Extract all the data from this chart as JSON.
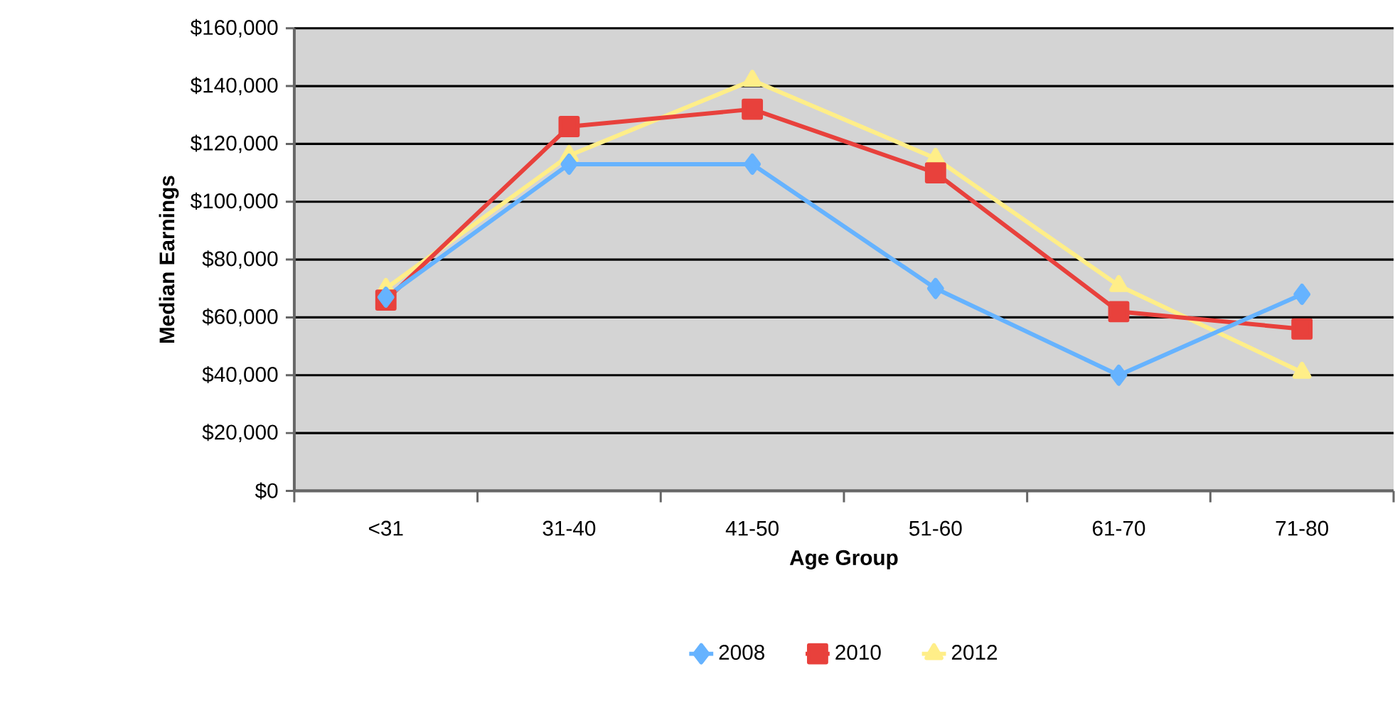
{
  "chart_data": {
    "type": "line",
    "xlabel": "Age Group",
    "ylabel": "Median Earnings",
    "categories": [
      "<31",
      "31-40",
      "41-50",
      "51-60",
      "61-70",
      "71-80"
    ],
    "series": [
      {
        "name": "2008",
        "color": "#66b3ff",
        "marker": "diamond",
        "values": [
          67000,
          113000,
          113000,
          70000,
          40000,
          68000
        ]
      },
      {
        "name": "2010",
        "color": "#e8413c",
        "marker": "square",
        "values": [
          66000,
          126000,
          132000,
          110000,
          62000,
          56000
        ]
      },
      {
        "name": "2012",
        "color": "#ffee88",
        "marker": "triangle",
        "values": [
          70000,
          116000,
          142000,
          115000,
          71000,
          41000
        ]
      }
    ],
    "ylim": [
      0,
      160000
    ],
    "yticks": [
      {
        "value": 0,
        "label": "$0"
      },
      {
        "value": 20000,
        "label": "$20,000"
      },
      {
        "value": 40000,
        "label": "$40,000"
      },
      {
        "value": 60000,
        "label": "$60,000"
      },
      {
        "value": 80000,
        "label": "$80,000"
      },
      {
        "value": 100000,
        "label": "$100,000"
      },
      {
        "value": 120000,
        "label": "$120,000"
      },
      {
        "value": 140000,
        "label": "$140,000"
      },
      {
        "value": 160000,
        "label": "$160,000"
      }
    ],
    "grid": "y",
    "legend": "bottom",
    "line_style": "solid"
  }
}
